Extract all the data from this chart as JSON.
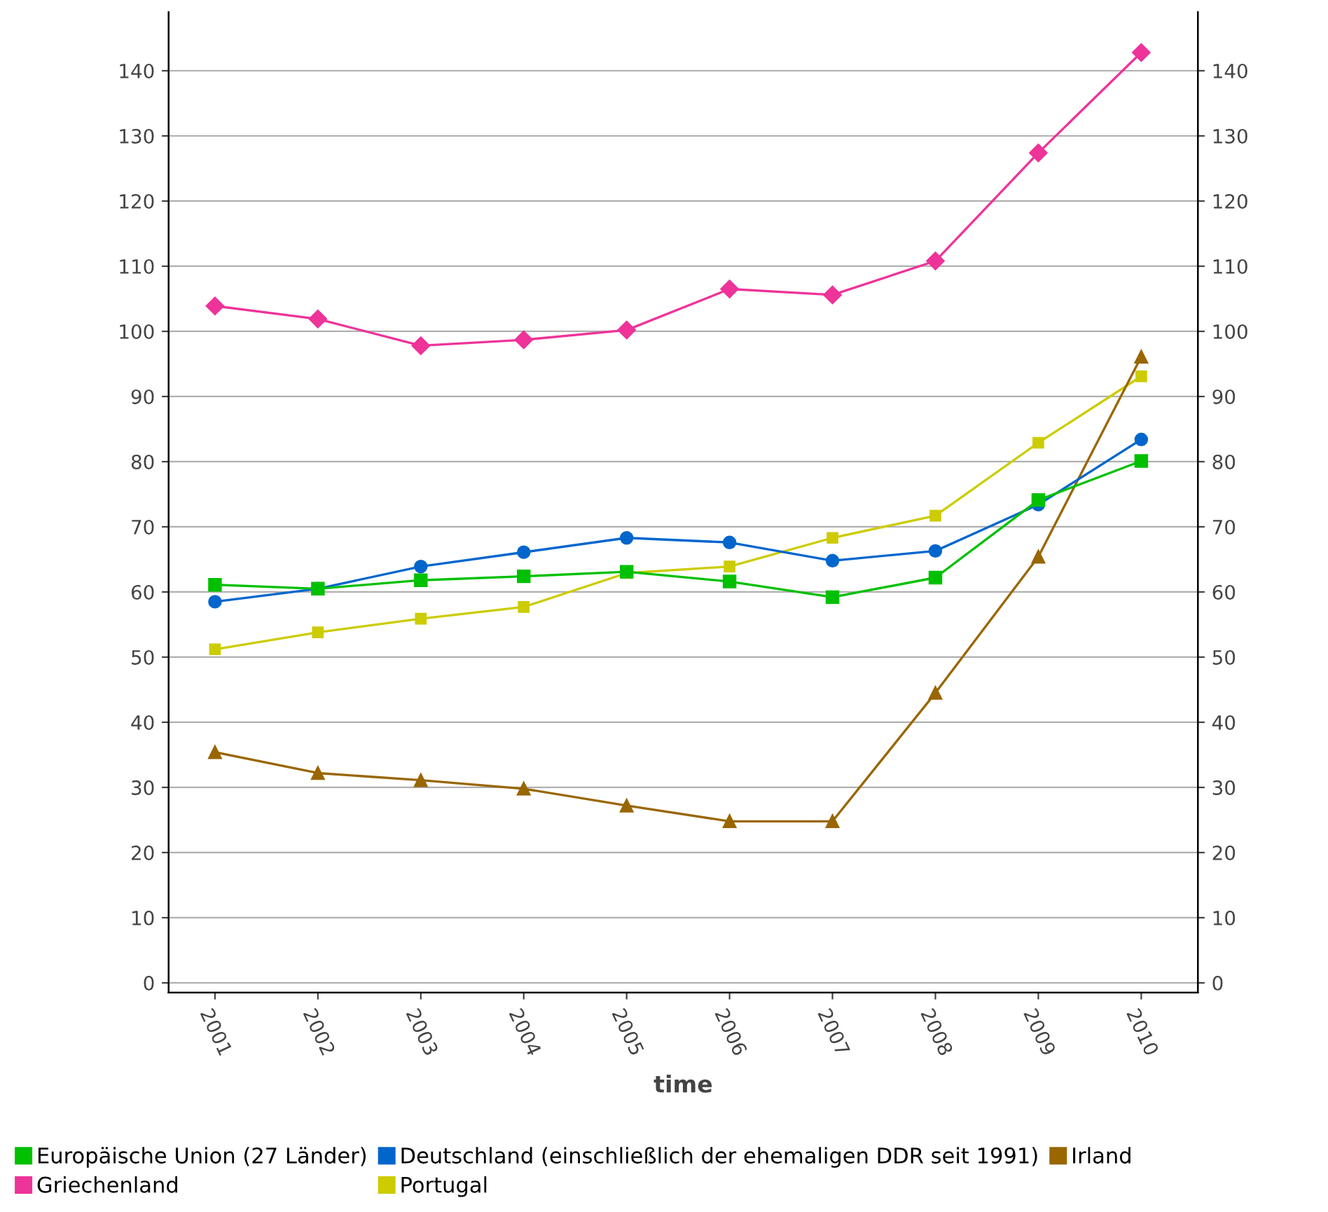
{
  "chart_data": {
    "type": "line",
    "xlabel": "time",
    "categories": [
      "2001",
      "2002",
      "2003",
      "2004",
      "2005",
      "2006",
      "2007",
      "2008",
      "2009",
      "2010"
    ],
    "series": [
      {
        "name": "Europäische Union (27 Länder)",
        "color": "#00c000",
        "marker": "square",
        "values": [
          61.1,
          60.5,
          61.8,
          62.4,
          63.1,
          61.6,
          59.2,
          62.2,
          74.1,
          80.1
        ]
      },
      {
        "name": "Deutschland (einschließlich der ehemaligen DDR seit 1991)",
        "color": "#0066cc",
        "marker": "circle",
        "values": [
          58.5,
          60.5,
          63.9,
          66.1,
          68.3,
          67.6,
          64.8,
          66.3,
          73.4,
          83.4
        ]
      },
      {
        "name": "Irland",
        "color": "#996600",
        "marker": "triangle",
        "values": [
          35.4,
          32.2,
          31.1,
          29.8,
          27.2,
          24.8,
          24.8,
          44.5,
          65.4,
          96.1
        ]
      },
      {
        "name": "Griechenland",
        "color": "#ee3399",
        "marker": "diamond",
        "values": [
          103.9,
          101.9,
          97.8,
          98.7,
          100.2,
          106.5,
          105.6,
          110.8,
          127.4,
          142.8
        ]
      },
      {
        "name": "Portugal",
        "color": "#cccc00",
        "marker": "square",
        "values": [
          51.2,
          53.8,
          55.9,
          57.7,
          62.9,
          63.9,
          68.3,
          71.7,
          82.9,
          93.1
        ]
      }
    ],
    "ylim": [
      -1.5,
      149
    ],
    "yticks": [
      0,
      10,
      20,
      30,
      40,
      50,
      60,
      70,
      80,
      90,
      100,
      110,
      120,
      130,
      140
    ],
    "y2lim": [
      -1.5,
      149
    ],
    "y2ticks": [
      0,
      10,
      20,
      30,
      40,
      50,
      60,
      70,
      80,
      90,
      100,
      110,
      120,
      130,
      140
    ],
    "grid": "y",
    "legend": "bottom",
    "line_style": "solid"
  }
}
